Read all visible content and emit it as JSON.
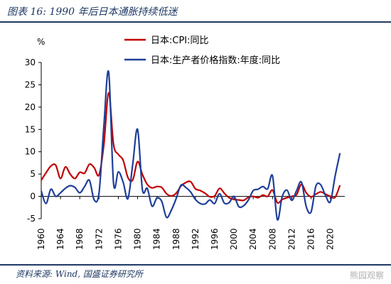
{
  "title": "图表 16:  1990 年后日本通胀持续低迷",
  "source": "资料来源:  Wind,  国盛证券研究所",
  "watermark": "熊园观察",
  "colors": {
    "cpi": "#c00000",
    "ppi": "#1f3f99",
    "rule": "#1f3864"
  },
  "chart_data": {
    "type": "line",
    "unit": "%",
    "ylim": [
      -5,
      30
    ],
    "yticks": [
      -5,
      0,
      5,
      10,
      15,
      20,
      25,
      30
    ],
    "xlim": [
      1960,
      2023
    ],
    "xticks": [
      1960,
      1964,
      1968,
      1972,
      1976,
      1980,
      1984,
      1988,
      1992,
      1996,
      2000,
      2004,
      2008,
      2012,
      2016,
      2020
    ],
    "legend_position": "top",
    "series": [
      {
        "name": "日本:CPI:同比",
        "color": "#c00000",
        "x": [
          1960,
          1961,
          1962,
          1963,
          1964,
          1965,
          1966,
          1967,
          1968,
          1969,
          1970,
          1971,
          1972,
          1973,
          1974,
          1975,
          1976,
          1977,
          1978,
          1979,
          1980,
          1981,
          1982,
          1983,
          1984,
          1985,
          1986,
          1987,
          1988,
          1989,
          1990,
          1991,
          1992,
          1993,
          1994,
          1995,
          1996,
          1997,
          1998,
          1999,
          2000,
          2001,
          2002,
          2003,
          2004,
          2005,
          2006,
          2007,
          2008,
          2009,
          2010,
          2011,
          2012,
          2013,
          2014,
          2015,
          2016,
          2017,
          2018,
          2019,
          2020,
          2021,
          2022
        ],
        "values": [
          3.6,
          5.3,
          6.8,
          7.0,
          4.0,
          6.6,
          5.0,
          4.0,
          5.4,
          5.2,
          7.2,
          6.4,
          4.8,
          11.6,
          23.2,
          11.7,
          9.4,
          8.1,
          4.2,
          3.7,
          7.8,
          4.9,
          2.7,
          1.9,
          2.2,
          2.0,
          0.6,
          0.1,
          0.7,
          2.3,
          3.1,
          3.3,
          1.7,
          1.3,
          0.7,
          -0.1,
          0.1,
          1.8,
          0.7,
          -0.3,
          -0.7,
          -0.8,
          -0.9,
          -0.2,
          0.0,
          -0.3,
          0.3,
          0.0,
          1.4,
          -1.4,
          -0.7,
          -0.3,
          0.0,
          0.4,
          2.7,
          0.8,
          -0.1,
          0.5,
          1.0,
          0.5,
          0.0,
          -0.2,
          2.5
        ]
      },
      {
        "name": "日本:生产者价格指数:年度:同比",
        "color": "#1f3f99",
        "x": [
          1960,
          1961,
          1962,
          1963,
          1964,
          1965,
          1966,
          1967,
          1968,
          1969,
          1970,
          1971,
          1972,
          1973,
          1974,
          1975,
          1976,
          1977,
          1978,
          1979,
          1980,
          1981,
          1982,
          1983,
          1984,
          1985,
          1986,
          1987,
          1988,
          1989,
          1990,
          1991,
          1992,
          1993,
          1994,
          1995,
          1996,
          1997,
          1998,
          1999,
          2000,
          2001,
          2002,
          2003,
          2004,
          2005,
          2006,
          2007,
          2008,
          2009,
          2010,
          2011,
          2012,
          2013,
          2014,
          2015,
          2016,
          2017,
          2018,
          2019,
          2020,
          2021,
          2022
        ],
        "values": [
          1.2,
          -1.6,
          1.6,
          0.0,
          0.8,
          1.8,
          2.4,
          2.0,
          0.8,
          2.2,
          3.6,
          -0.8,
          0.8,
          15.8,
          27.8,
          3.0,
          5.5,
          3.2,
          -0.5,
          7.3,
          15.0,
          1.5,
          1.8,
          -2.2,
          -0.4,
          -1.1,
          -4.7,
          -3.1,
          -0.5,
          2.5,
          2.0,
          1.0,
          -0.7,
          -1.6,
          -1.7,
          -0.8,
          -1.6,
          0.6,
          -1.5,
          -1.4,
          0.0,
          -2.3,
          -2.1,
          -0.8,
          1.3,
          1.6,
          2.2,
          1.7,
          4.6,
          -5.2,
          -0.1,
          1.4,
          -0.9,
          1.3,
          3.2,
          -2.3,
          -3.5,
          2.3,
          2.6,
          0.2,
          -1.2,
          4.6,
          9.7
        ]
      }
    ]
  }
}
